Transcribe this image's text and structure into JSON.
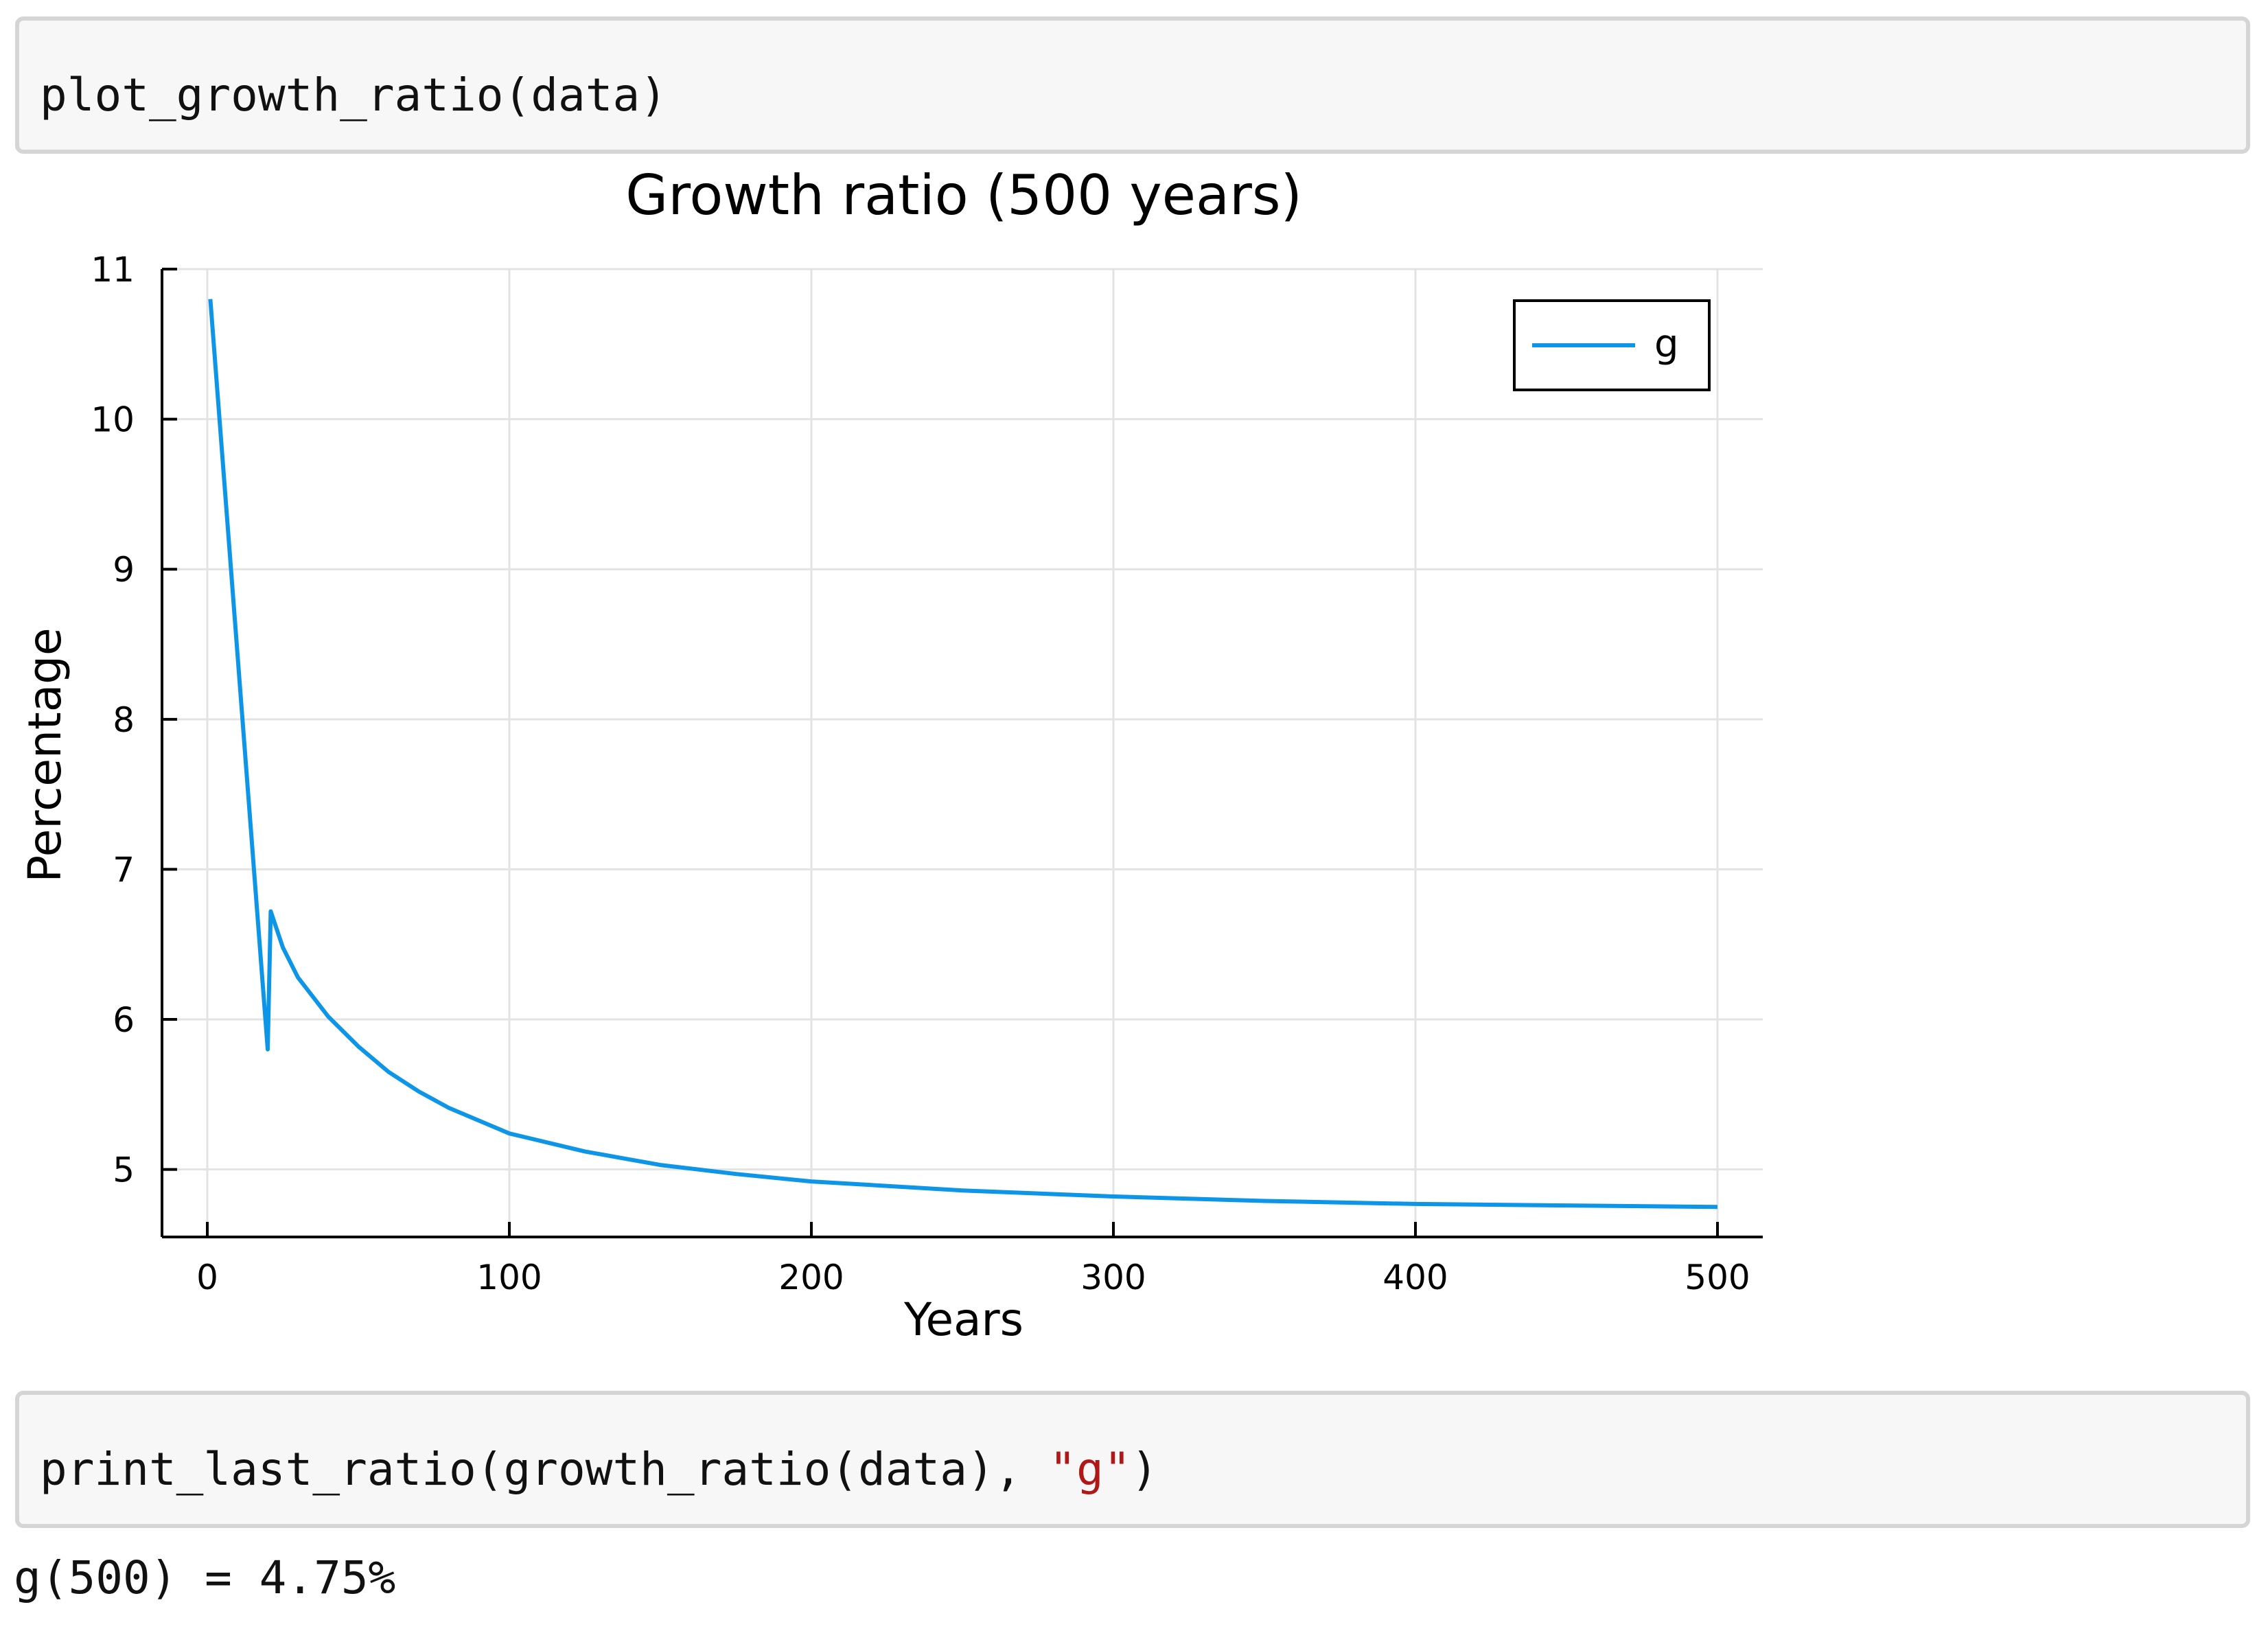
{
  "cells": [
    {
      "code": "plot_growth_ratio(data)"
    },
    {
      "code_prefix": "print_last_ratio(growth_ratio(data), ",
      "code_string": "\"g\"",
      "code_suffix": ")"
    }
  ],
  "output": "g(500) = 4.75%",
  "colors": {
    "series": "#0d95e8",
    "string": "#b01818"
  },
  "chart_data": {
    "type": "line",
    "title": "Growth ratio (500 years)",
    "xlabel": "Years",
    "ylabel": "Percentage",
    "xlim": [
      -15,
      515
    ],
    "ylim": [
      4.55,
      11
    ],
    "xticks": [
      0,
      100,
      200,
      300,
      400,
      500
    ],
    "yticks": [
      5,
      6,
      7,
      8,
      9,
      10,
      11
    ],
    "grid": true,
    "legend": "top-right",
    "series": [
      {
        "name": "g",
        "x": [
          1,
          20,
          21,
          25,
          30,
          40,
          50,
          60,
          70,
          80,
          100,
          125,
          150,
          175,
          200,
          250,
          300,
          350,
          400,
          450,
          500
        ],
        "y": [
          10.8,
          5.8,
          6.72,
          6.48,
          6.28,
          6.02,
          5.82,
          5.65,
          5.52,
          5.41,
          5.24,
          5.12,
          5.03,
          4.97,
          4.92,
          4.86,
          4.82,
          4.79,
          4.77,
          4.76,
          4.75
        ]
      }
    ]
  }
}
